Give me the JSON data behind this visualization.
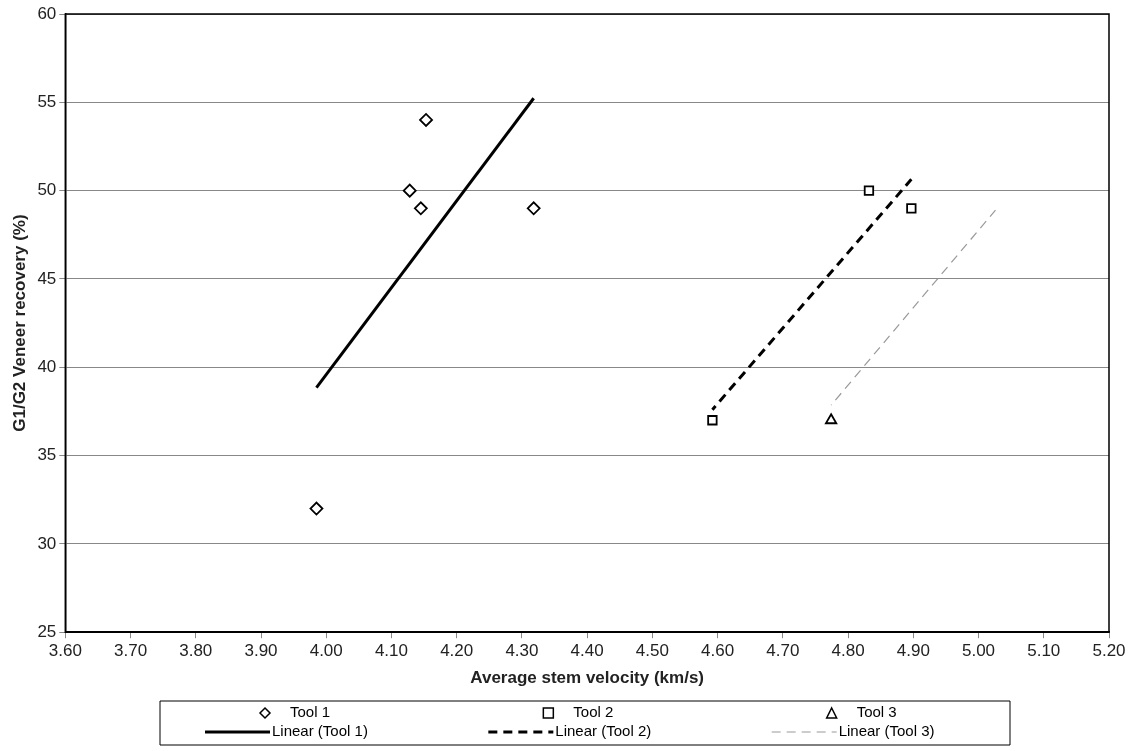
{
  "chart_data": {
    "type": "scatter",
    "xlabel": "Average stem velocity (km/s)",
    "ylabel": "G1/G2 Veneer recovery (%)",
    "xlim": [
      3.6,
      5.2
    ],
    "xticks": [
      {
        "value": 3.6,
        "label": "3.60"
      },
      {
        "value": 3.7,
        "label": "3.70"
      },
      {
        "value": 3.8,
        "label": "3.80"
      },
      {
        "value": 3.9,
        "label": "3.90"
      },
      {
        "value": 4.0,
        "label": "4.00"
      },
      {
        "value": 4.1,
        "label": "4.10"
      },
      {
        "value": 4.2,
        "label": "4.20"
      },
      {
        "value": 4.3,
        "label": "4.30"
      },
      {
        "value": 4.4,
        "label": "4.40"
      },
      {
        "value": 4.5,
        "label": "4.50"
      },
      {
        "value": 4.6,
        "label": "4.60"
      },
      {
        "value": 4.7,
        "label": "4.70"
      },
      {
        "value": 4.8,
        "label": "4.80"
      },
      {
        "value": 4.9,
        "label": "4.90"
      },
      {
        "value": 5.0,
        "label": "5.00"
      },
      {
        "value": 5.1,
        "label": "5.10"
      },
      {
        "value": 5.2,
        "label": "5.20"
      }
    ],
    "ylim": [
      25,
      60
    ],
    "yticks": [
      25,
      30,
      35,
      40,
      45,
      50,
      55,
      60
    ],
    "grid": "y",
    "legend": "bottom",
    "series": [
      {
        "name": "Tool 1",
        "type": "scatter",
        "marker": "diamond",
        "color": "#000000",
        "x": [
          3.985,
          4.128,
          4.145,
          4.153,
          4.318
        ],
        "values": [
          32,
          50,
          49,
          54,
          49
        ]
      },
      {
        "name": "Tool 2",
        "type": "scatter",
        "marker": "square",
        "color": "#000000",
        "x": [
          4.592,
          4.832,
          4.897
        ],
        "values": [
          37,
          50,
          49
        ]
      },
      {
        "name": "Tool 3",
        "type": "scatter",
        "marker": "triangle",
        "color": "#000000",
        "x": [
          4.774
        ],
        "values": [
          37
        ]
      },
      {
        "name": "Linear (Tool 1)",
        "type": "line",
        "marker": "none",
        "line_style": "solid",
        "color": "#000000",
        "x": [
          3.985,
          4.318
        ],
        "values": [
          38.85,
          55.23
        ]
      },
      {
        "name": "Linear (Tool 2)",
        "type": "line",
        "marker": "none",
        "line_style": "dashed",
        "color": "#000000",
        "x": [
          4.592,
          4.897
        ],
        "values": [
          37.6,
          50.64
        ]
      },
      {
        "name": "Linear (Tool 3)",
        "type": "line",
        "marker": "none",
        "line_style": "dashed",
        "color": "#999999",
        "x": [
          4.774,
          5.026
        ],
        "values": [
          37.85,
          48.9
        ]
      }
    ]
  }
}
